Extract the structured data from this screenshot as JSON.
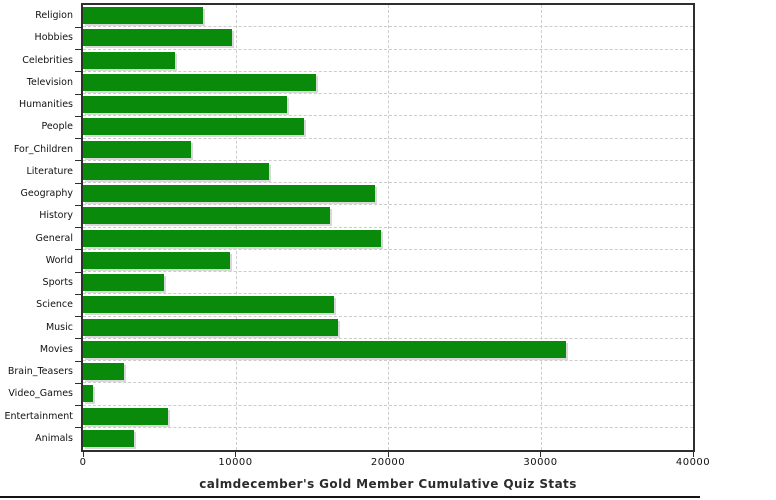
{
  "chart_data": {
    "type": "bar",
    "orientation": "horizontal",
    "title": "calmdecember's Gold Member Cumulative Quiz Stats",
    "categories": [
      "Religion",
      "Hobbies",
      "Celebrities",
      "Television",
      "Humanities",
      "People",
      "For_Children",
      "Literature",
      "Geography",
      "History",
      "General",
      "World",
      "Sports",
      "Science",
      "Music",
      "Movies",
      "Brain_Teasers",
      "Video_Games",
      "Entertainment",
      "Animals"
    ],
    "values": [
      7900,
      9740,
      6030,
      15280,
      13400,
      14460,
      7100,
      12200,
      19140,
      16190,
      19530,
      9610,
      5290,
      16430,
      16710,
      31660,
      2700,
      650,
      5600,
      3330
    ],
    "xlim": [
      0,
      40000
    ],
    "x_ticks": [
      0,
      10000,
      20000,
      30000,
      40000
    ],
    "x_tick_labels": [
      "0",
      "10000",
      "20000",
      "30000",
      "40000"
    ],
    "grid": "dashed",
    "legend": "none",
    "colors": {
      "bar": "#0a8a0a",
      "bar_shadow": "#d8d8d8",
      "gridline": "#cccccc",
      "frame": "#2e2e2e",
      "label": "#111111",
      "title": "#2b2b2b",
      "window_border": "#141414"
    }
  }
}
